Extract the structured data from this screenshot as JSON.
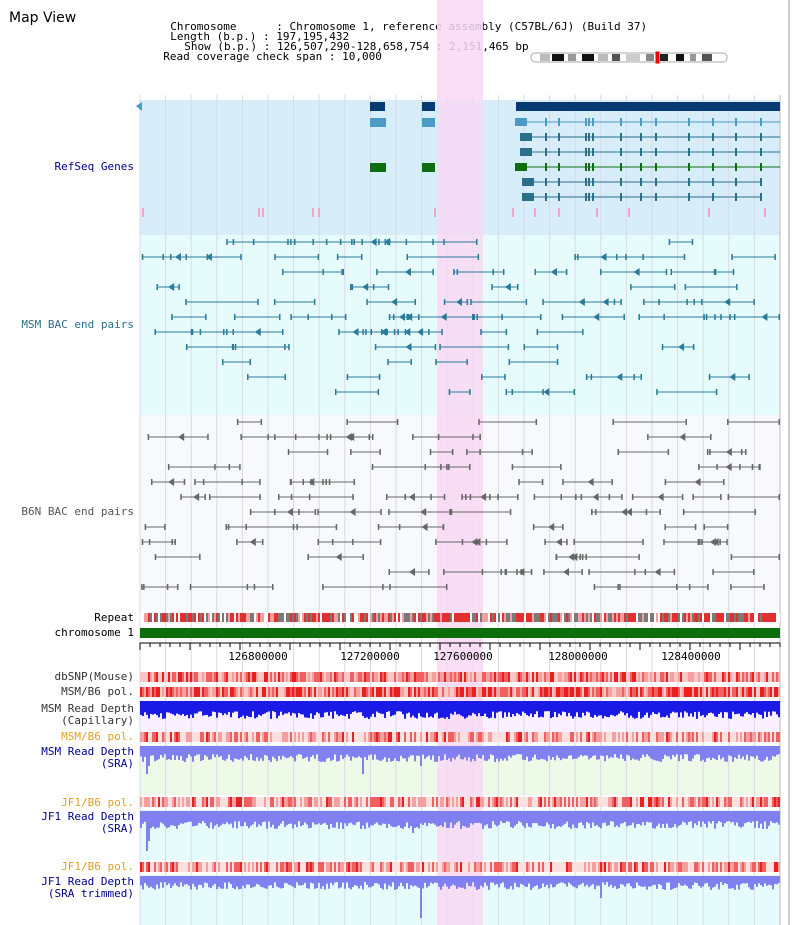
{
  "page": {
    "title": "Map View"
  },
  "header": {
    "rows": [
      {
        "label": "Chromosome",
        "value": "Chromosome 1, reference assembly (C57BL/6J) (Build 37)"
      },
      {
        "label": "Length (b.p.)",
        "value": "197,195,432"
      },
      {
        "label": "Show (b.p.)",
        "value": "126,507,290-128,658,754 : 2,151,465 bp"
      },
      {
        "label": "Read coverage check span",
        "value": "10,000"
      }
    ]
  },
  "tracks": {
    "refseq": "RefSeq Genes",
    "msm_bac": "MSM BAC end pairs",
    "b6n_bac": "B6N BAC end pairs",
    "repeat": "Repeat",
    "chromosome": "chromosome 1",
    "dbsnp": "dbSNP(Mouse)",
    "msm_b6_pol_1": "MSM/B6 pol.",
    "msm_read_depth_cap": [
      "MSM Read Depth",
      "(Capillary)"
    ],
    "msm_b6_pol_2": "MSM/B6 pol.",
    "msm_read_depth_sra": [
      "MSM Read Depth",
      "(SRA)"
    ],
    "jf1_b6_pol_1": "JF1/B6 pol.",
    "jf1_read_depth_sra": [
      "JF1 Read Depth",
      "(SRA)"
    ],
    "jf1_b6_pol_2": "JF1/B6 pol.",
    "jf1_read_depth_trim": [
      "JF1 Read Depth",
      "(SRA trimmed)"
    ]
  },
  "axis": {
    "ticks": [
      "126800000",
      "127200000",
      "127600000",
      "128000000",
      "128400000"
    ]
  },
  "colors": {
    "refseq_bg": "#d7eefa",
    "msm_bg": "#e6fcfc",
    "highlight": "#f8d8f3",
    "gene_blue": "#063a73",
    "gene_light": "#4a9bc7",
    "gene_green": "#0e6e0e",
    "msm_pair": "#2a7a9a",
    "b6n_pair": "#666666",
    "chromosome_bar": "#0b6e0b",
    "depth_dark": "#1a1ae6",
    "depth_light": "#8080f0",
    "label_blue": "#00008b",
    "label_orange": "#e6a020",
    "label_teal": "#2a6f8a"
  }
}
